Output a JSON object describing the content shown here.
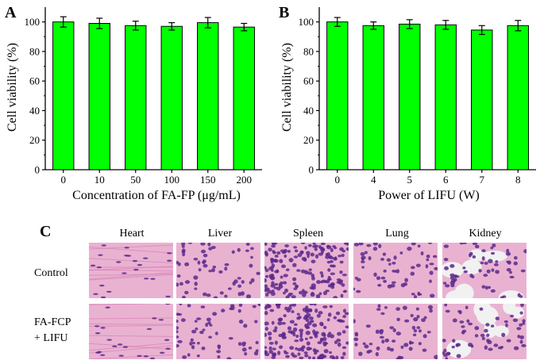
{
  "colors": {
    "bar_fill": "#00ff00",
    "bar_stroke": "#000000",
    "axis": "#000000",
    "histo_bg": "#e9b2d1",
    "histo_nuclei": "#5a2a8c",
    "histo_cyto": "#d47ab0",
    "histo_empty": "#f1f1f1"
  },
  "chart_data": [
    {
      "panel": "A",
      "type": "bar",
      "categories": [
        "0",
        "10",
        "50",
        "100",
        "150",
        "200"
      ],
      "values": [
        100,
        99,
        97.5,
        97,
        99.5,
        96.5
      ],
      "errors": [
        3.5,
        3.5,
        3,
        2.5,
        3.5,
        2.5
      ],
      "xlabel": "Concentration of FA-FP (μg/mL)",
      "ylabel": "Cell viability (%)",
      "ylim": [
        0,
        110
      ],
      "yticks": [
        "0",
        "20",
        "40",
        "60",
        "80",
        "100"
      ],
      "grid": false
    },
    {
      "panel": "B",
      "type": "bar",
      "categories": [
        "0",
        "4",
        "5",
        "6",
        "7",
        "8"
      ],
      "values": [
        100,
        97.5,
        98.5,
        98,
        94.5,
        97.5
      ],
      "errors": [
        3,
        2.5,
        3,
        3,
        3,
        3.5
      ],
      "xlabel": "Power of LIFU (W)",
      "ylabel": "Cell viability (%)",
      "ylim": [
        0,
        110
      ],
      "yticks": [
        "0",
        "20",
        "40",
        "60",
        "80",
        "100"
      ],
      "grid": false
    }
  ],
  "histology": {
    "panel": "C",
    "columns": [
      "Heart",
      "Liver",
      "Spleen",
      "Lung",
      "Kidney"
    ],
    "rows": [
      {
        "label_lines": [
          "Control"
        ]
      },
      {
        "label_lines": [
          "FA-FCP",
          "+ LIFU"
        ]
      }
    ]
  }
}
